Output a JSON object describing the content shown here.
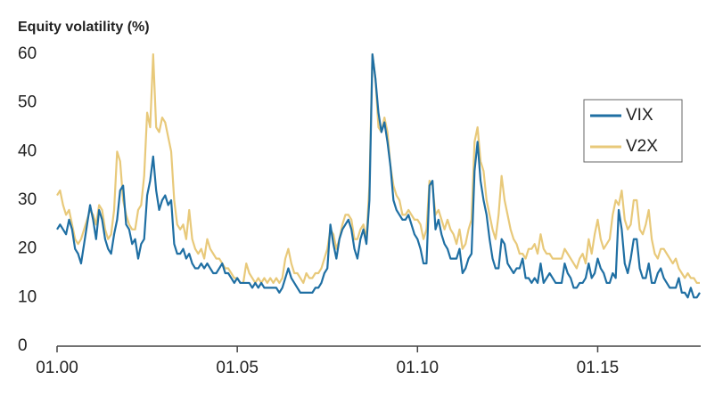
{
  "chart_data": {
    "type": "line",
    "y_label": "Equity volatility (%)",
    "x": [
      "01.00",
      "02.00",
      "03.00",
      "04.00",
      "05.00",
      "06.00",
      "07.00",
      "08.00",
      "09.00",
      "10.00",
      "11.00",
      "12.00",
      "01.01",
      "02.01",
      "03.01",
      "04.01",
      "05.01",
      "06.01",
      "07.01",
      "08.01",
      "09.01",
      "10.01",
      "11.01",
      "12.01",
      "01.02",
      "02.02",
      "03.02",
      "04.02",
      "05.02",
      "06.02",
      "07.02",
      "08.02",
      "09.02",
      "10.02",
      "11.02",
      "12.02",
      "01.03",
      "02.03",
      "03.03",
      "04.03",
      "05.03",
      "06.03",
      "07.03",
      "08.03",
      "09.03",
      "10.03",
      "11.03",
      "12.03",
      "01.04",
      "02.04",
      "03.04",
      "04.04",
      "05.04",
      "06.04",
      "07.04",
      "08.04",
      "09.04",
      "10.04",
      "11.04",
      "12.04",
      "01.05",
      "02.05",
      "03.05",
      "04.05",
      "05.05",
      "06.05",
      "07.05",
      "08.05",
      "09.05",
      "10.05",
      "11.05",
      "12.05",
      "01.06",
      "02.06",
      "03.06",
      "04.06",
      "05.06",
      "06.06",
      "07.06",
      "08.06",
      "09.06",
      "10.06",
      "11.06",
      "12.06",
      "01.07",
      "02.07",
      "03.07",
      "04.07",
      "05.07",
      "06.07",
      "07.07",
      "08.07",
      "09.07",
      "10.07",
      "11.07",
      "12.07",
      "01.08",
      "02.08",
      "03.08",
      "04.08",
      "05.08",
      "06.08",
      "07.08",
      "08.08",
      "09.08",
      "10.08",
      "11.08",
      "12.08",
      "01.09",
      "02.09",
      "03.09",
      "04.09",
      "05.09",
      "06.09",
      "07.09",
      "08.09",
      "09.09",
      "10.09",
      "11.09",
      "12.09",
      "01.10",
      "02.10",
      "03.10",
      "04.10",
      "05.10",
      "06.10",
      "07.10",
      "08.10",
      "09.10",
      "10.10",
      "11.10",
      "12.10",
      "01.11",
      "02.11",
      "03.11",
      "04.11",
      "05.11",
      "06.11",
      "07.11",
      "08.11",
      "09.11",
      "10.11",
      "11.11",
      "12.11",
      "01.12",
      "02.12",
      "03.12",
      "04.12",
      "05.12",
      "06.12",
      "07.12",
      "08.12",
      "09.12",
      "10.12",
      "11.12",
      "12.12",
      "01.13",
      "02.13",
      "03.13",
      "04.13",
      "05.13",
      "06.13",
      "07.13",
      "08.13",
      "09.13",
      "10.13",
      "11.13",
      "12.13",
      "01.14",
      "02.14",
      "03.14",
      "04.14",
      "05.14",
      "06.14",
      "07.14",
      "08.14",
      "09.14",
      "10.14",
      "11.14",
      "12.14",
      "01.15",
      "02.15",
      "03.15",
      "04.15",
      "05.15",
      "06.15",
      "07.15",
      "08.15",
      "09.15",
      "10.15",
      "11.15",
      "12.15",
      "01.16",
      "02.16",
      "03.16",
      "04.16",
      "05.16",
      "06.16",
      "07.16",
      "08.16",
      "09.16",
      "10.16",
      "11.16",
      "12.16",
      "01.17",
      "02.17",
      "03.17",
      "04.17",
      "05.17",
      "06.17",
      "07.17",
      "08.17",
      "09.17",
      "10.17",
      "11.17"
    ],
    "series": [
      {
        "name": "VIX",
        "color": "#1f6fa3",
        "values": [
          24,
          25,
          24,
          23,
          26,
          24,
          20,
          19,
          17,
          21,
          25,
          29,
          26,
          22,
          28,
          26,
          22,
          20,
          19,
          23,
          26,
          32,
          33,
          25,
          24,
          21,
          22,
          18,
          21,
          22,
          31,
          34,
          39,
          32,
          28,
          30,
          31,
          29,
          30,
          21,
          19,
          19,
          20,
          18,
          19,
          17,
          16,
          16,
          17,
          16,
          17,
          16,
          15,
          15,
          16,
          17,
          15,
          15,
          14,
          13,
          14,
          13,
          13,
          13,
          13,
          12,
          13,
          12,
          13,
          12,
          12,
          12,
          12,
          12,
          11,
          12,
          14,
          16,
          14,
          13,
          12,
          11,
          11,
          11,
          11,
          11,
          12,
          12,
          13,
          15,
          16,
          25,
          21,
          18,
          22,
          24,
          25,
          26,
          24,
          20,
          18,
          22,
          24,
          21,
          30,
          60,
          55,
          48,
          44,
          46,
          42,
          37,
          30,
          28,
          27,
          26,
          26,
          27,
          25,
          23,
          22,
          20,
          17,
          17,
          33,
          34,
          24,
          26,
          23,
          21,
          20,
          18,
          18,
          18,
          20,
          15,
          16,
          18,
          19,
          36,
          42,
          34,
          30,
          27,
          22,
          18,
          16,
          16,
          22,
          21,
          17,
          16,
          15,
          16,
          16,
          18,
          14,
          14,
          13,
          14,
          13,
          17,
          13,
          14,
          15,
          14,
          13,
          13,
          13,
          17,
          15,
          14,
          12,
          12,
          13,
          13,
          14,
          17,
          14,
          15,
          18,
          16,
          15,
          13,
          13,
          15,
          14,
          28,
          24,
          17,
          15,
          18,
          22,
          22,
          16,
          14,
          14,
          17,
          13,
          13,
          15,
          16,
          14,
          13,
          12,
          12,
          12,
          14,
          11,
          11,
          10,
          12,
          10,
          10,
          11
        ]
      },
      {
        "name": "V2X",
        "color": "#e8c97a",
        "values": [
          31,
          32,
          29,
          27,
          28,
          25,
          22,
          21,
          22,
          24,
          26,
          28,
          27,
          25,
          29,
          28,
          24,
          22,
          23,
          28,
          40,
          38,
          30,
          27,
          25,
          24,
          24,
          28,
          29,
          35,
          48,
          45,
          60,
          45,
          44,
          47,
          46,
          43,
          40,
          30,
          25,
          24,
          25,
          22,
          28,
          22,
          20,
          19,
          20,
          18,
          22,
          20,
          19,
          18,
          18,
          17,
          16,
          16,
          15,
          14,
          14,
          13,
          13,
          17,
          15,
          14,
          13,
          14,
          13,
          14,
          13,
          14,
          13,
          14,
          13,
          14,
          18,
          20,
          17,
          15,
          15,
          14,
          13,
          15,
          14,
          14,
          15,
          15,
          16,
          18,
          20,
          24,
          23,
          20,
          22,
          25,
          27,
          27,
          26,
          22,
          22,
          24,
          25,
          22,
          33,
          60,
          55,
          45,
          44,
          47,
          44,
          37,
          33,
          31,
          30,
          27,
          27,
          28,
          27,
          26,
          26,
          25,
          22,
          24,
          34,
          33,
          27,
          28,
          26,
          24,
          26,
          24,
          23,
          21,
          24,
          20,
          21,
          24,
          26,
          42,
          45,
          38,
          36,
          30,
          27,
          24,
          22,
          27,
          35,
          30,
          27,
          24,
          22,
          21,
          19,
          19,
          18,
          20,
          20,
          21,
          19,
          23,
          20,
          19,
          19,
          18,
          18,
          18,
          18,
          20,
          19,
          18,
          17,
          16,
          18,
          19,
          17,
          22,
          19,
          23,
          26,
          22,
          20,
          21,
          22,
          27,
          30,
          29,
          32,
          26,
          24,
          25,
          30,
          30,
          24,
          23,
          25,
          28,
          22,
          19,
          18,
          20,
          20,
          19,
          18,
          17,
          18,
          16,
          15,
          14,
          15,
          14,
          14,
          13,
          13
        ]
      }
    ],
    "xticks": [
      "01.00",
      "01.05",
      "01.10",
      "01.15"
    ],
    "ylim": [
      0,
      60
    ],
    "yticks": [
      0,
      10,
      20,
      30,
      40,
      50,
      60
    ],
    "legend": "upper-right"
  }
}
